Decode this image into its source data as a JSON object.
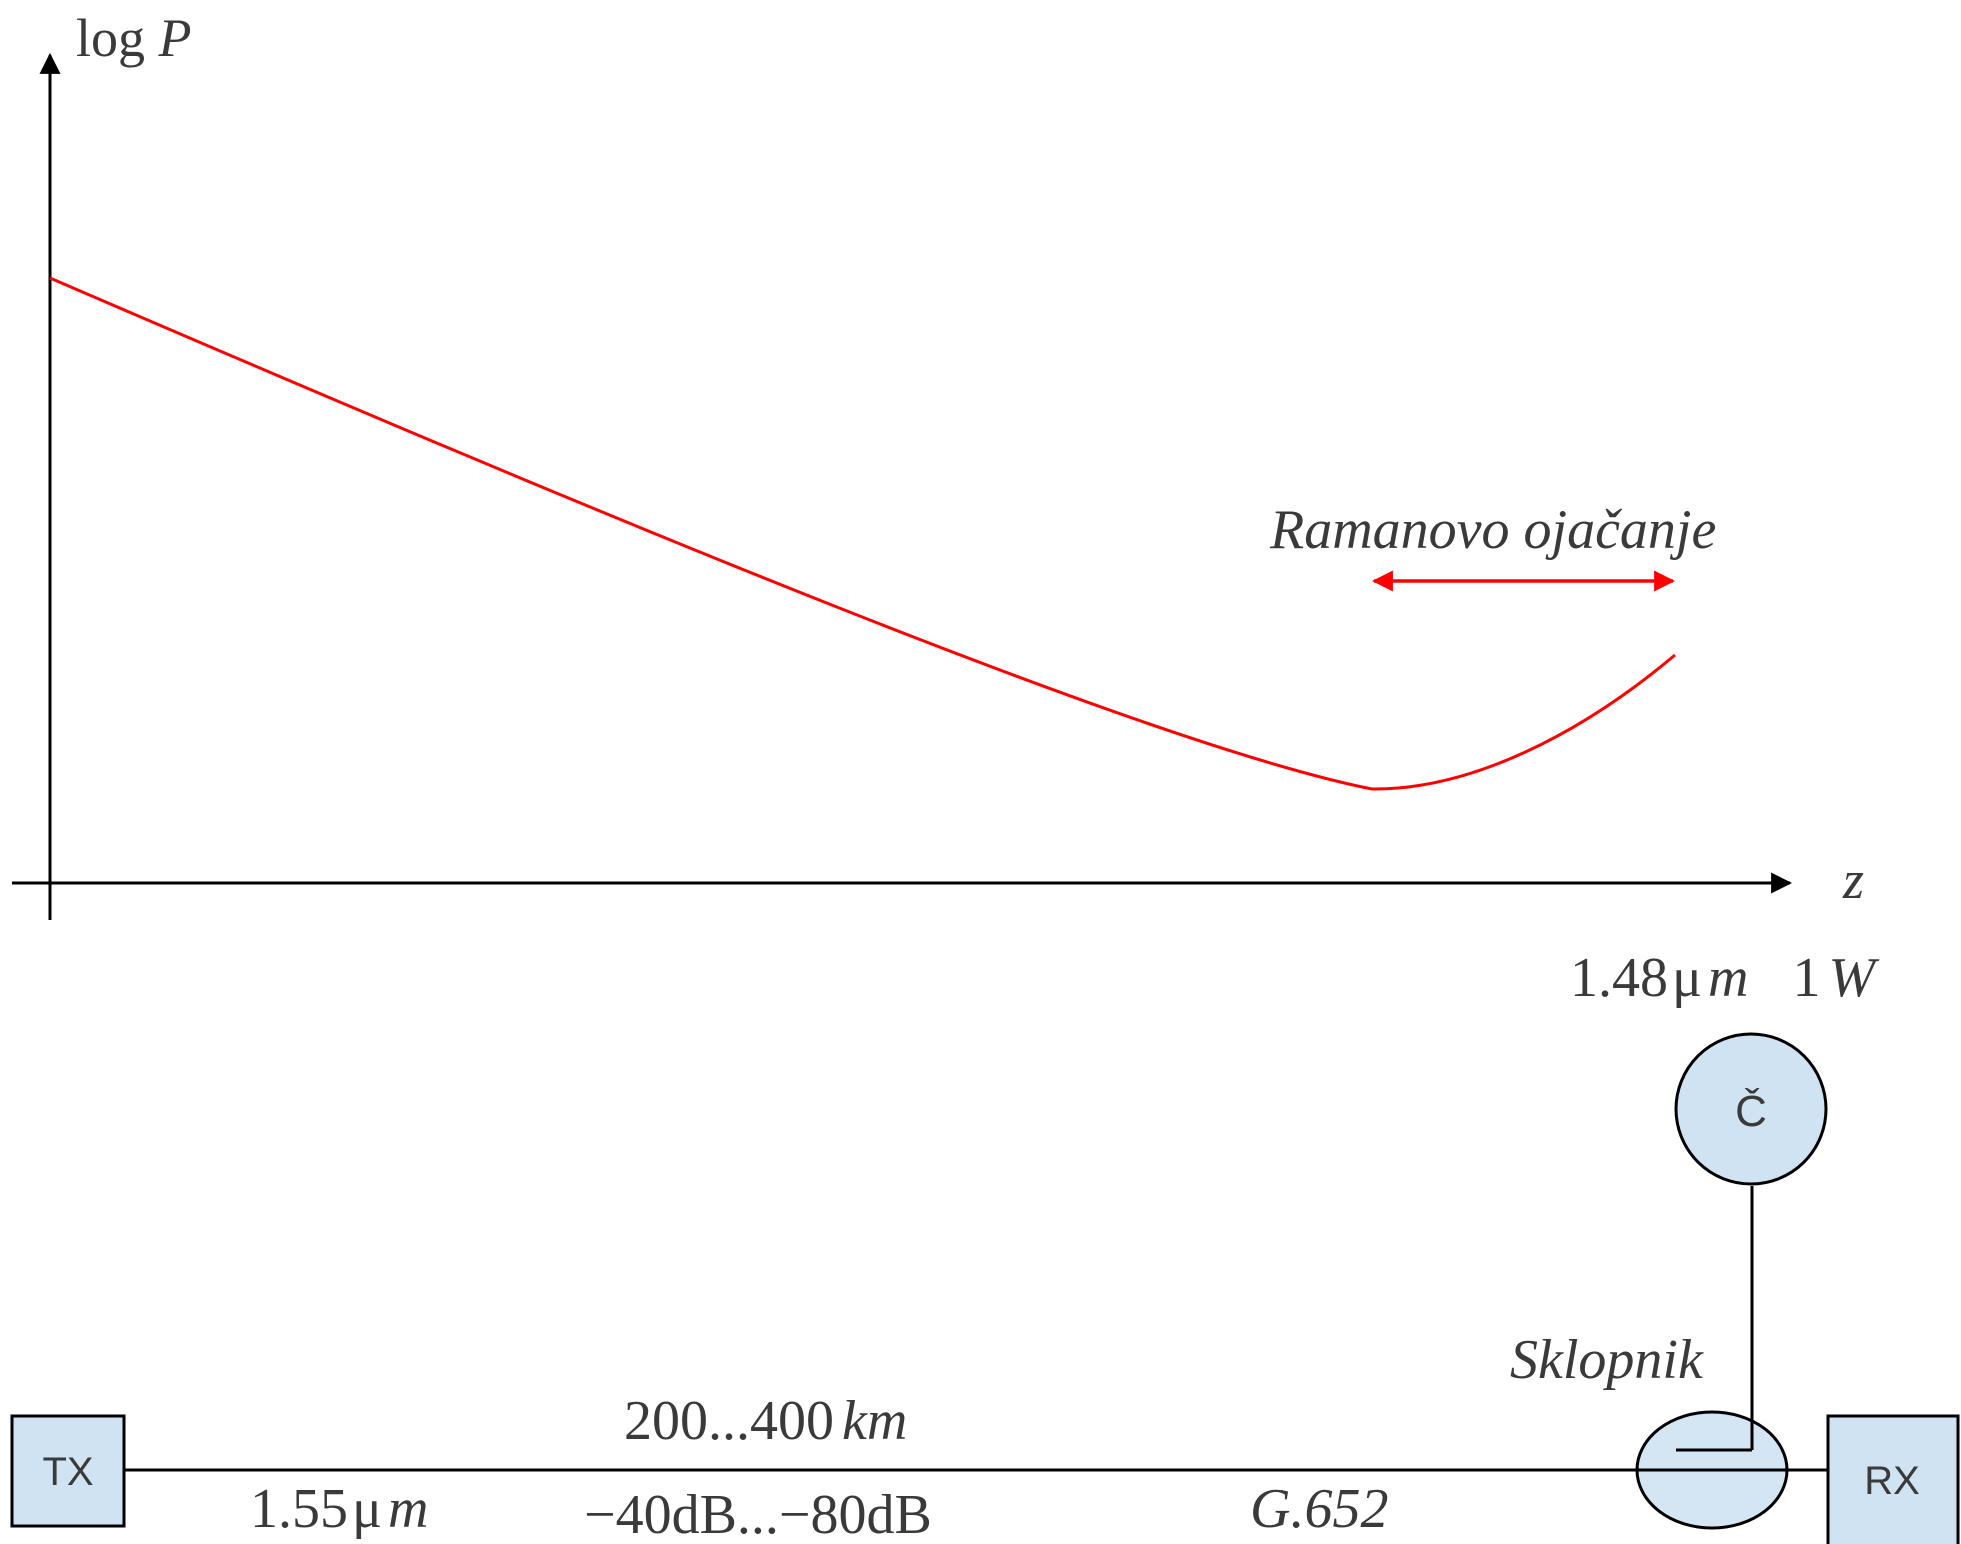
{
  "plot": {
    "y_axis_label_prefix": "log ",
    "y_axis_label_var": "P",
    "x_axis_label": "z",
    "curve_color": "#ff0000",
    "annotation": "Ramanovo ojačanje"
  },
  "link": {
    "tx_label": "TX",
    "rx_label": "RX",
    "pump_label": "Č",
    "pump_wavelength_num": "1.48",
    "pump_wavelength_unit": "μ",
    "pump_wavelength_m": "m",
    "pump_power_num": "1",
    "pump_power_unit": "W",
    "coupler_label": "Sklopnik",
    "distance_num": "200...400",
    "distance_unit": "km",
    "signal_wavelength_num": "1.55",
    "signal_wavelength_unit": "μ",
    "signal_wavelength_m": "m",
    "attenuation": "−40dB...−80dB",
    "fiber_type": "G.652",
    "box_fill": "#cfe3f3"
  }
}
